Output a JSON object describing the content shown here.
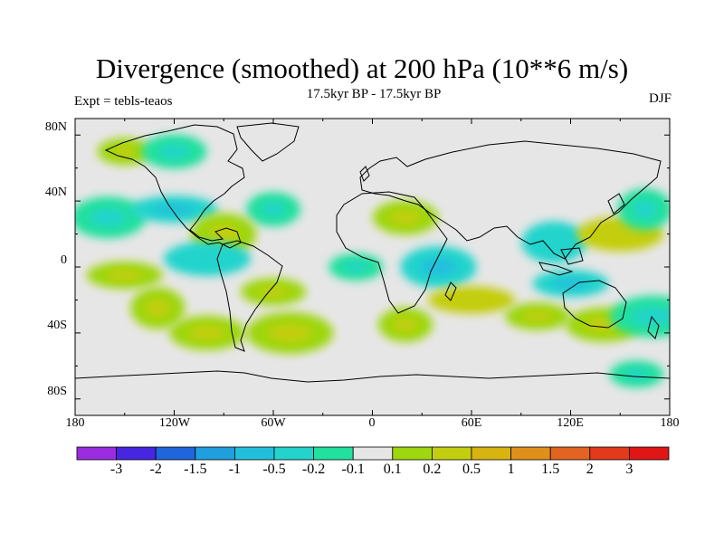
{
  "title": "Divergence (smoothed) at 200 hPa (10**6 m/s)",
  "left_string": "Expt = tebls-teaos",
  "center_string": "17.5kyr BP - 17.5kyr BP",
  "right_string": "DJF",
  "lat_labels": [
    "80N",
    "40N",
    "0",
    "40S",
    "80S"
  ],
  "lon_labels": [
    "180",
    "120W",
    "60W",
    "0",
    "60E",
    "120E",
    "180"
  ],
  "colorbar": {
    "colors": [
      "#9a2de0",
      "#4626e0",
      "#1f66dd",
      "#1f9fdd",
      "#22bfdd",
      "#22d4cc",
      "#22e09e",
      "#e6e6e6",
      "#9ed60f",
      "#c4ce10",
      "#d8b410",
      "#e0901a",
      "#e26420",
      "#e23a1a",
      "#e01515"
    ],
    "labels": [
      "-3",
      "-2",
      "-1.5",
      "-1",
      "-0.5",
      "-0.2",
      "-0.1",
      "0.1",
      "0.2",
      "0.5",
      "1",
      "1.5",
      "2",
      "3"
    ]
  },
  "chart_data": {
    "type": "contour map",
    "variable": "Divergence (smoothed) at 200 hPa",
    "units": "10**6 m/s",
    "season": "DJF",
    "experiment": "tebls-teaos",
    "period": "17.5kyr BP - 17.5kyr BP",
    "lon_range": [
      -180,
      180
    ],
    "lat_range": [
      -90,
      90
    ],
    "contour_levels": [
      -3,
      -2,
      -1.5,
      -1,
      -0.5,
      -0.2,
      -0.1,
      0.1,
      0.2,
      0.5,
      1,
      1.5,
      2,
      3
    ],
    "anomaly_regions": [
      {
        "lon": -150,
        "lat": 70,
        "value": 0.3
      },
      {
        "lon": -120,
        "lat": 70,
        "value": -0.2
      },
      {
        "lon": -160,
        "lat": 30,
        "value": -0.3
      },
      {
        "lon": -120,
        "lat": 35,
        "value": -0.5
      },
      {
        "lon": -60,
        "lat": 35,
        "value": -0.3
      },
      {
        "lon": -90,
        "lat": 20,
        "value": 0.3
      },
      {
        "lon": -150,
        "lat": -5,
        "value": 0.3
      },
      {
        "lon": -100,
        "lat": 5,
        "value": -0.4
      },
      {
        "lon": -130,
        "lat": -25,
        "value": 0.4
      },
      {
        "lon": -60,
        "lat": -15,
        "value": 0.4
      },
      {
        "lon": -100,
        "lat": -40,
        "value": 0.3
      },
      {
        "lon": -50,
        "lat": -40,
        "value": 0.3
      },
      {
        "lon": -10,
        "lat": 0,
        "value": -0.3
      },
      {
        "lon": 20,
        "lat": 30,
        "value": 0.3
      },
      {
        "lon": 40,
        "lat": 0,
        "value": -0.5
      },
      {
        "lon": 60,
        "lat": -20,
        "value": 0.5
      },
      {
        "lon": 20,
        "lat": -35,
        "value": 0.3
      },
      {
        "lon": 110,
        "lat": 15,
        "value": -0.4
      },
      {
        "lon": 120,
        "lat": -10,
        "value": -0.5
      },
      {
        "lon": 150,
        "lat": 20,
        "value": 0.5
      },
      {
        "lon": 165,
        "lat": 35,
        "value": -0.3
      },
      {
        "lon": 100,
        "lat": -30,
        "value": 0.3
      },
      {
        "lon": 140,
        "lat": -35,
        "value": 0.4
      },
      {
        "lon": 170,
        "lat": -30,
        "value": -0.3
      },
      {
        "lon": 160,
        "lat": -65,
        "value": -0.2
      }
    ]
  }
}
